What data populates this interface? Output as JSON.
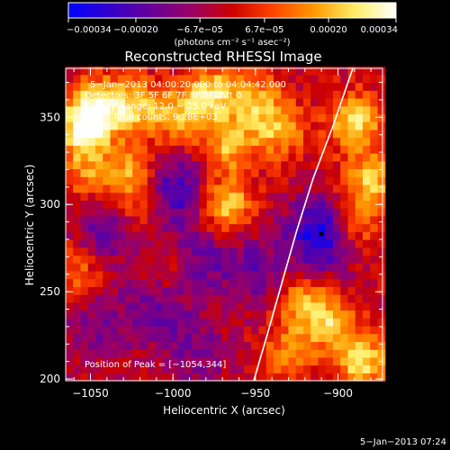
{
  "chart_data": {
    "type": "heatmap",
    "title": "Reconstructed RHESSI Image",
    "xlabel": "Heliocentric X (arcsec)",
    "ylabel": "Heliocentric Y (arcsec)",
    "xlim": [
      -1065,
      -873
    ],
    "ylim": [
      199,
      378
    ],
    "x_ticks": [
      -1050,
      -1000,
      -950,
      -900
    ],
    "y_ticks": [
      200,
      250,
      300,
      350
    ],
    "x_tick_labels": [
      "−1050",
      "−1000",
      "−950",
      "−900"
    ],
    "y_tick_labels": [
      "200",
      "250",
      "300",
      "350"
    ],
    "colorbar": {
      "range": [
        -0.00034,
        0.00034
      ],
      "ticks": [
        -0.00034,
        -0.0002,
        -6.7e-05,
        6.7e-05,
        0.0002,
        0.00034
      ],
      "tick_labels": [
        "−0.00034",
        "−0.00020",
        "−6.7e−05",
        "6.7e−05",
        "0.00020",
        "0.00034"
      ],
      "units_label": "(photons cm⁻² s⁻¹ asec⁻²)",
      "colors": [
        "#0000ff",
        "#3300cc",
        "#660099",
        "#990066",
        "#cc0000",
        "#ff4400",
        "#ff9900",
        "#ffee66",
        "#ffffff"
      ]
    },
    "annotations": {
      "time_range": "5−Jan−2013 04:00:20.000 to 04:04:42.000",
      "detectors": "Detectors: 3F 5F 6F 7F 8F 9F, Att 0",
      "energy_range": "Energy Range: 12.0 − 25.0 keV",
      "clean_counts": "Clean     Total counts: 9.28E+03",
      "peak_position": "Position of Peak = [−1054,344]"
    },
    "peak_marker": {
      "x": -910,
      "y": 283
    },
    "limb_curve": [
      [
        -951,
        199
      ],
      [
        -943,
        225
      ],
      [
        -934,
        255
      ],
      [
        -925,
        285
      ],
      [
        -915,
        315
      ],
      [
        -903,
        345
      ],
      [
        -891,
        378
      ]
    ],
    "hot_spots": [
      {
        "x": -1054,
        "y": 344,
        "strength": 1.0
      },
      {
        "x": -1045,
        "y": 358,
        "strength": 0.8
      },
      {
        "x": -1052,
        "y": 318,
        "strength": 0.5
      },
      {
        "x": -1022,
        "y": 356,
        "strength": 0.7
      },
      {
        "x": -1025,
        "y": 320,
        "strength": 0.6
      },
      {
        "x": -1020,
        "y": 300,
        "strength": 0.5
      },
      {
        "x": -995,
        "y": 350,
        "strength": 0.7
      },
      {
        "x": -975,
        "y": 364,
        "strength": 0.8
      },
      {
        "x": -965,
        "y": 335,
        "strength": 0.7
      },
      {
        "x": -968,
        "y": 300,
        "strength": 0.8
      },
      {
        "x": -948,
        "y": 360,
        "strength": 0.6
      },
      {
        "x": -935,
        "y": 342,
        "strength": 0.6
      },
      {
        "x": -890,
        "y": 348,
        "strength": 0.85
      },
      {
        "x": -880,
        "y": 315,
        "strength": 0.7
      },
      {
        "x": -890,
        "y": 290,
        "strength": 0.6
      },
      {
        "x": -922,
        "y": 245,
        "strength": 0.6
      },
      {
        "x": -905,
        "y": 232,
        "strength": 0.7
      },
      {
        "x": -885,
        "y": 210,
        "strength": 0.85
      },
      {
        "x": -930,
        "y": 215,
        "strength": 0.5
      },
      {
        "x": -1058,
        "y": 262,
        "strength": 0.45
      },
      {
        "x": -1000,
        "y": 262,
        "strength": 0.3
      }
    ],
    "cold_spots": [
      {
        "x": -910,
        "y": 283,
        "strength": 1.0
      },
      {
        "x": -1000,
        "y": 308,
        "strength": 0.75
      },
      {
        "x": -1040,
        "y": 285,
        "strength": 0.5
      },
      {
        "x": -985,
        "y": 268,
        "strength": 0.5
      },
      {
        "x": -1010,
        "y": 240,
        "strength": 0.45
      },
      {
        "x": -950,
        "y": 262,
        "strength": 0.45
      },
      {
        "x": -1045,
        "y": 230,
        "strength": 0.35
      },
      {
        "x": -985,
        "y": 215,
        "strength": 0.35
      }
    ]
  },
  "footer": {
    "timestamp": "5−Jan−2013 07:24"
  }
}
